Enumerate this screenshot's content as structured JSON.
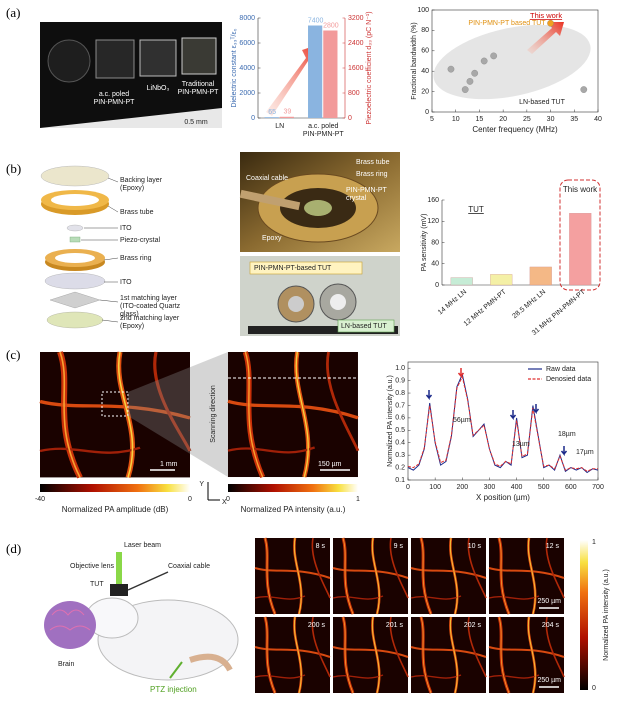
{
  "panels": {
    "a": {
      "label": "(a)",
      "photo": [
        "a.c. poled PIN-PMN-PT",
        "LiNbO₃",
        "Traditional PIN-PMN-PT",
        "0.5 mm"
      ]
    },
    "b": {
      "label": "(b)",
      "layers": [
        "Backing layer (Epoxy)",
        "Brass tube",
        "ITO",
        "Piezo-crystal",
        "Brass ring",
        "ITO",
        "1st matching layer (ITO-coated Quartz glass)",
        "2nd matching layer (Epoxy)"
      ],
      "photo_top": [
        "Coaxial cable",
        "Brass tube",
        "Brass ring",
        "PIN-PMN-PT crystal",
        "Epoxy"
      ],
      "photo_bottom": [
        "PIN-PMN-PT-based TUT",
        "LN-based TUT"
      ]
    },
    "c": {
      "label": "(c)",
      "overview_scale": "1 mm",
      "zoom_scale": "150 µm",
      "scan": "Scanning direction",
      "axis_y": "Y",
      "axis_x": "X",
      "colorbar_db": {
        "min": -40,
        "max": 0,
        "label": "Normalized PA amplitude (dB)"
      },
      "colorbar_int": {
        "min": 0,
        "max": 1,
        "label": "Normalized PA intensity (a.u.)"
      }
    },
    "d": {
      "label": "(d)",
      "illustration": [
        "Laser beam",
        "Objective lens",
        "TUT",
        "Coaxial cable",
        "Brain",
        "PTZ injection"
      ],
      "times": [
        "8 s",
        "9 s",
        "10 s",
        "12 s",
        "200 s",
        "201 s",
        "202 s",
        "204 s"
      ],
      "scale": "250 µm",
      "colorbar": {
        "max": 1,
        "min": 0,
        "label": "Normalized PA intensity (a.u.)"
      }
    }
  },
  "chart_data": [
    {
      "type": "bar",
      "categories": [
        "LN",
        "a.c. poled PIN-PMN-PT"
      ],
      "ylabel": "Dielectric constant ε₃₃ᵀ/ε₀",
      "y2label": "Piezoelectric coefficient d₃₃ (pC N⁻¹)",
      "ylim": [
        0,
        8000
      ],
      "yticks": [
        0,
        2000,
        4000,
        6000,
        8000
      ],
      "y2lim": [
        0,
        3200
      ],
      "y2ticks": [
        0,
        800,
        1600,
        2400,
        3200
      ],
      "series": [
        {
          "color": "#8ab4e0",
          "values": [
            65,
            7400
          ]
        },
        {
          "color": "#f29a9a",
          "values": [
            39,
            2800
          ],
          "axis": "y2"
        }
      ]
    },
    {
      "type": "scatter",
      "xlabel": "Center frequency (MHz)",
      "ylabel": "Fractional bandwidth (%)",
      "xlim": [
        5,
        40
      ],
      "xticks": [
        5,
        10,
        15,
        20,
        25,
        30,
        35,
        40
      ],
      "ylim": [
        0,
        100
      ],
      "yticks": [
        0,
        20,
        40,
        60,
        80,
        100
      ],
      "series": [
        {
          "name": "LN-based TUT",
          "color": "#a8a8a8",
          "x": [
            9,
            12,
            13,
            14,
            16,
            18,
            37
          ],
          "values": [
            42,
            22,
            30,
            38,
            50,
            55,
            22
          ]
        },
        {
          "name": "PIN-PMN-PT based TUT",
          "color": "#f0a020",
          "x": [
            30
          ],
          "values": [
            87
          ]
        }
      ],
      "annotations": [
        "This work"
      ]
    },
    {
      "type": "bar",
      "ylabel": "PA sensitivity (mV)",
      "categories": [
        "14 MHz LN",
        "12 MHz PMN-PT",
        "28.5 MHz LN",
        "31 MHz PIN-PMN-PT"
      ],
      "values": [
        14,
        20,
        34,
        135
      ],
      "colors": [
        "#c6ecd6",
        "#f4f0a6",
        "#f4b886",
        "#f4a0a0"
      ],
      "ylim": [
        0,
        160
      ],
      "yticks": [
        0,
        40,
        80,
        120,
        160
      ],
      "annotations": [
        "TUT",
        "This work"
      ]
    },
    {
      "type": "line",
      "xlabel": "X position (µm)",
      "ylabel": "Normalized PA intensity (a.u.)",
      "xlim": [
        0,
        700
      ],
      "xticks": [
        0,
        100,
        200,
        300,
        400,
        500,
        600,
        700
      ],
      "ylim": [
        0.1,
        1.05
      ],
      "yticks": [
        0.1,
        0.2,
        0.3,
        0.4,
        0.5,
        0.6,
        0.7,
        0.8,
        0.9,
        {
          "value": 1,
          "label": "1.0"
        }
      ],
      "x": [
        0,
        20,
        40,
        60,
        80,
        100,
        120,
        140,
        160,
        180,
        200,
        220,
        240,
        260,
        280,
        300,
        320,
        340,
        360,
        380,
        400,
        420,
        440,
        460,
        480,
        500,
        520,
        540,
        560,
        580,
        600,
        620,
        640,
        660,
        680,
        700
      ],
      "series": [
        {
          "name": "Raw data",
          "color": "#1c2a8a",
          "values": [
            0.2,
            0.18,
            0.22,
            0.35,
            0.72,
            0.4,
            0.22,
            0.25,
            0.45,
            0.85,
            0.95,
            0.75,
            0.45,
            0.5,
            0.55,
            0.35,
            0.22,
            0.2,
            0.25,
            0.22,
            0.6,
            0.28,
            0.3,
            0.7,
            0.45,
            0.2,
            0.22,
            0.18,
            0.3,
            0.17,
            0.2,
            0.18,
            0.2,
            0.16,
            0.19,
            0.18
          ]
        },
        {
          "name": "Denosied data",
          "color": "#e03030",
          "values": [
            0.21,
            0.2,
            0.23,
            0.36,
            0.7,
            0.41,
            0.24,
            0.26,
            0.46,
            0.84,
            0.93,
            0.74,
            0.46,
            0.5,
            0.54,
            0.35,
            0.23,
            0.21,
            0.25,
            0.23,
            0.58,
            0.29,
            0.31,
            0.68,
            0.44,
            0.21,
            0.22,
            0.19,
            0.29,
            0.18,
            0.2,
            0.19,
            0.2,
            0.17,
            0.19,
            0.19
          ]
        }
      ],
      "annotations": [
        "56µm",
        "13µm",
        "18µm",
        "17µm"
      ]
    }
  ]
}
